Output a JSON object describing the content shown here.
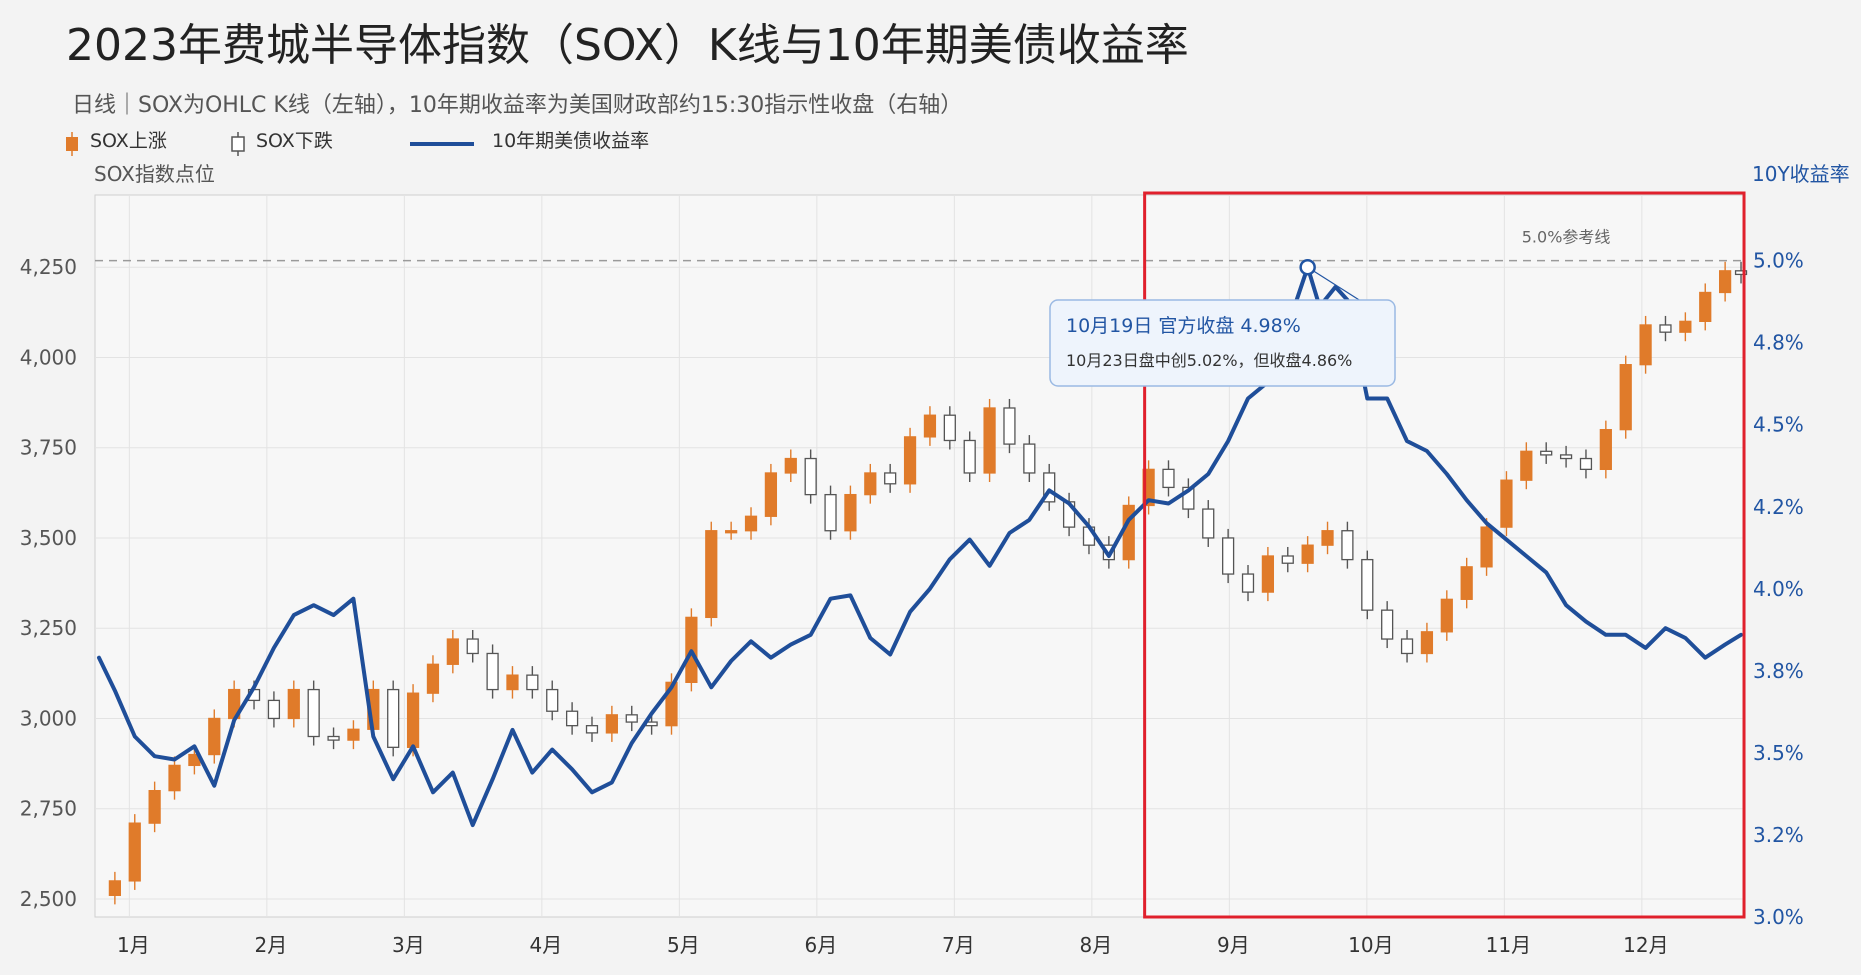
{
  "title": "2023年费城半导体指数（SOX）K线与10年期美债收益率",
  "subtitle": "日线｜SOX为OHLC K线（左轴），10年期收益率为美国财政部约15:30指示性收盘（右轴）",
  "legend": {
    "up": "SOX上涨",
    "down": "SOX下跌",
    "yield": "10年期美债收益率"
  },
  "colors": {
    "up": "#e07b2a",
    "down": "#ffffff",
    "down_stroke": "#555555",
    "yield": "#1f4e99",
    "highlight_box": "#e0202c",
    "grid": "#e3e3e3"
  },
  "chart_data": {
    "type": "candlestick+line",
    "title": "2023年费城半导体指数（SOX）K线与10年期美债收益率",
    "left_axis": {
      "label": "SOX指数点位",
      "ticks": [
        2500,
        2750,
        3000,
        3250,
        3500,
        3750,
        4000,
        4250
      ],
      "tick_labels": [
        "2,500",
        "2,750",
        "3,000",
        "3,250",
        "3,500",
        "3,750",
        "4,000",
        "4,250"
      ],
      "range": [
        2450,
        4450
      ]
    },
    "right_axis": {
      "label": "10Y收益率",
      "ticks": [
        3.0,
        3.25,
        3.5,
        3.75,
        4.0,
        4.25,
        4.5,
        4.75,
        5.0
      ],
      "tick_labels": [
        "3.0%",
        "3.2%",
        "3.5%",
        "3.8%",
        "4.0%",
        "4.2%",
        "4.5%",
        "4.8%",
        "5.0%"
      ],
      "range": [
        3.0,
        5.2
      ]
    },
    "x_axis": {
      "months": [
        "1月",
        "2月",
        "3月",
        "4月",
        "5月",
        "6月",
        "7月",
        "8月",
        "9月",
        "10月",
        "11月",
        "12月"
      ]
    },
    "sox_close": [
      [
        1,
        2510
      ],
      [
        5,
        2550
      ],
      [
        10,
        2710
      ],
      [
        15,
        2800
      ],
      [
        20,
        2870
      ],
      [
        25,
        2900
      ],
      [
        30,
        3000
      ],
      [
        35,
        3080
      ],
      [
        40,
        3050
      ],
      [
        45,
        3000
      ],
      [
        50,
        3080
      ],
      [
        55,
        2950
      ],
      [
        60,
        2940
      ],
      [
        65,
        2970
      ],
      [
        70,
        3080
      ],
      [
        75,
        2920
      ],
      [
        80,
        3070
      ],
      [
        85,
        3150
      ],
      [
        90,
        3220
      ],
      [
        95,
        3180
      ],
      [
        100,
        3080
      ],
      [
        105,
        3120
      ],
      [
        110,
        3080
      ],
      [
        115,
        3020
      ],
      [
        120,
        2980
      ],
      [
        125,
        2960
      ],
      [
        130,
        3010
      ],
      [
        135,
        2990
      ],
      [
        140,
        2980
      ],
      [
        145,
        3100
      ],
      [
        150,
        3280
      ],
      [
        155,
        3520
      ],
      [
        160,
        3520
      ],
      [
        165,
        3560
      ],
      [
        170,
        3680
      ],
      [
        175,
        3720
      ],
      [
        180,
        3620
      ],
      [
        185,
        3520
      ],
      [
        190,
        3620
      ],
      [
        195,
        3680
      ],
      [
        200,
        3650
      ],
      [
        205,
        3780
      ],
      [
        210,
        3840
      ],
      [
        215,
        3770
      ],
      [
        220,
        3680
      ],
      [
        225,
        3860
      ],
      [
        230,
        3760
      ],
      [
        235,
        3680
      ],
      [
        240,
        3600
      ],
      [
        245,
        3530
      ],
      [
        250,
        3480
      ],
      [
        255,
        3440
      ],
      [
        260,
        3590
      ],
      [
        265,
        3690
      ],
      [
        270,
        3640
      ],
      [
        275,
        3580
      ],
      [
        280,
        3500
      ],
      [
        285,
        3400
      ],
      [
        290,
        3350
      ],
      [
        295,
        3450
      ],
      [
        300,
        3430
      ],
      [
        305,
        3480
      ],
      [
        310,
        3520
      ],
      [
        315,
        3440
      ],
      [
        320,
        3300
      ],
      [
        325,
        3220
      ],
      [
        330,
        3180
      ],
      [
        335,
        3240
      ],
      [
        340,
        3330
      ],
      [
        345,
        3420
      ],
      [
        350,
        3530
      ],
      [
        355,
        3660
      ],
      [
        360,
        3740
      ],
      [
        365,
        3730
      ],
      [
        370,
        3720
      ],
      [
        375,
        3690
      ],
      [
        380,
        3800
      ],
      [
        385,
        3980
      ],
      [
        390,
        4090
      ],
      [
        395,
        4070
      ],
      [
        400,
        4100
      ],
      [
        405,
        4180
      ],
      [
        410,
        4240
      ],
      [
        414,
        4230
      ]
    ],
    "yield_10y": [
      [
        1,
        3.79
      ],
      [
        5,
        3.69
      ],
      [
        10,
        3.55
      ],
      [
        15,
        3.49
      ],
      [
        20,
        3.48
      ],
      [
        25,
        3.52
      ],
      [
        30,
        3.4
      ],
      [
        35,
        3.6
      ],
      [
        40,
        3.7
      ],
      [
        45,
        3.82
      ],
      [
        50,
        3.92
      ],
      [
        55,
        3.95
      ],
      [
        60,
        3.92
      ],
      [
        65,
        3.97
      ],
      [
        70,
        3.55
      ],
      [
        75,
        3.42
      ],
      [
        80,
        3.52
      ],
      [
        85,
        3.38
      ],
      [
        90,
        3.44
      ],
      [
        95,
        3.28
      ],
      [
        100,
        3.42
      ],
      [
        105,
        3.57
      ],
      [
        110,
        3.44
      ],
      [
        115,
        3.51
      ],
      [
        120,
        3.45
      ],
      [
        125,
        3.38
      ],
      [
        130,
        3.41
      ],
      [
        135,
        3.53
      ],
      [
        140,
        3.62
      ],
      [
        145,
        3.7
      ],
      [
        150,
        3.81
      ],
      [
        155,
        3.7
      ],
      [
        160,
        3.78
      ],
      [
        165,
        3.84
      ],
      [
        170,
        3.79
      ],
      [
        175,
        3.83
      ],
      [
        180,
        3.86
      ],
      [
        185,
        3.97
      ],
      [
        190,
        3.98
      ],
      [
        195,
        3.85
      ],
      [
        200,
        3.8
      ],
      [
        205,
        3.93
      ],
      [
        210,
        4.0
      ],
      [
        215,
        4.09
      ],
      [
        220,
        4.15
      ],
      [
        225,
        4.07
      ],
      [
        230,
        4.17
      ],
      [
        235,
        4.21
      ],
      [
        240,
        4.3
      ],
      [
        245,
        4.26
      ],
      [
        250,
        4.19
      ],
      [
        255,
        4.1
      ],
      [
        260,
        4.21
      ],
      [
        265,
        4.27
      ],
      [
        270,
        4.26
      ],
      [
        275,
        4.3
      ],
      [
        280,
        4.35
      ],
      [
        285,
        4.45
      ],
      [
        290,
        4.58
      ],
      [
        295,
        4.63
      ],
      [
        300,
        4.8
      ],
      [
        305,
        4.98
      ],
      [
        308,
        4.86
      ],
      [
        312,
        4.92
      ],
      [
        315,
        4.88
      ],
      [
        320,
        4.58
      ],
      [
        325,
        4.58
      ],
      [
        330,
        4.45
      ],
      [
        335,
        4.42
      ],
      [
        340,
        4.35
      ],
      [
        345,
        4.27
      ],
      [
        350,
        4.2
      ],
      [
        355,
        4.15
      ],
      [
        360,
        4.1
      ],
      [
        365,
        4.05
      ],
      [
        370,
        3.95
      ],
      [
        375,
        3.9
      ],
      [
        380,
        3.86
      ],
      [
        385,
        3.86
      ],
      [
        390,
        3.82
      ],
      [
        395,
        3.88
      ],
      [
        400,
        3.85
      ],
      [
        405,
        3.79
      ],
      [
        410,
        3.83
      ],
      [
        414,
        3.86
      ]
    ],
    "reference_line": {
      "value": 5.0,
      "label": "5.0%参考线"
    },
    "annotation": {
      "title": "10月19日 官方收盘 4.98%",
      "text": "10月23日盘中创5.02%，但收盘4.86%",
      "point_x": 305,
      "point_y": 4.98
    },
    "highlight_region": {
      "from_x": 264,
      "to_x": 414
    }
  }
}
